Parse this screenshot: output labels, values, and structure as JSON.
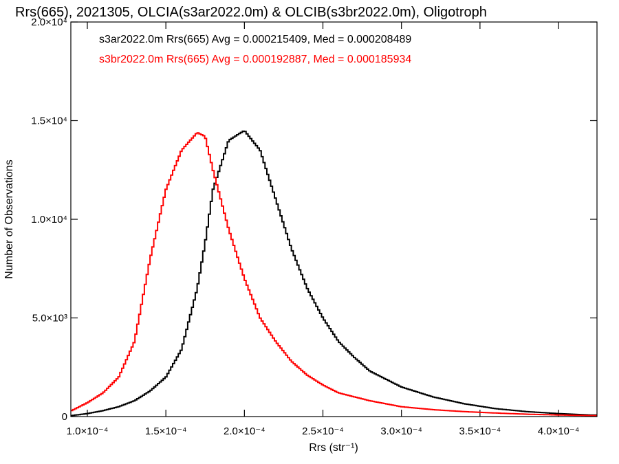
{
  "chart_data": {
    "type": "line",
    "step": true,
    "title": "Rrs(665), 2021305, OLCIA(s3ar2022.0m) & OLCIB(s3br2022.0m), Oligotroph",
    "xlabel": "Rrs (str⁻¹)",
    "ylabel": "Number of Observations",
    "xlim": [
      8.95e-05,
      0.0004245
    ],
    "ylim": [
      0,
      20000
    ],
    "xticks": [
      0.0001,
      0.00015,
      0.0002,
      0.00025,
      0.0003,
      0.00035,
      0.0004
    ],
    "xtick_labels": [
      "1.0×10⁻⁴",
      "1.5×10⁻⁴",
      "2.0×10⁻⁴",
      "2.5×10⁻⁴",
      "3.0×10⁻⁴",
      "3.5×10⁻⁴",
      "4.0×10⁻⁴"
    ],
    "yticks": [
      0,
      5000,
      10000,
      15000,
      20000
    ],
    "ytick_labels": [
      "0",
      "5.0×10³",
      "1.0×10⁴",
      "1.5×10⁴",
      "2.0×10⁴"
    ],
    "grid": false,
    "legend_position": "top-left",
    "x": [
      9e-05,
      0.0001,
      0.00011,
      0.00012,
      0.00013,
      0.00014,
      0.00015,
      0.00016,
      0.00017,
      0.000175,
      0.00018,
      0.00019,
      0.0002,
      0.00021,
      0.00022,
      0.00023,
      0.00024,
      0.00025,
      0.00026,
      0.00027,
      0.00028,
      0.00029,
      0.0003,
      0.00032,
      0.00034,
      0.00036,
      0.00038,
      0.0004,
      0.00042
    ],
    "series": [
      {
        "name": "s3ar2022.0m",
        "label": "s3ar2022.0m Rrs(665) Avg = 0.000215409, Med = 0.000208489",
        "color": "#000000",
        "values": [
          50,
          150,
          300,
          500,
          800,
          1300,
          2000,
          3400,
          6500,
          8800,
          11500,
          14000,
          14500,
          13500,
          11000,
          8500,
          6500,
          5000,
          3800,
          3000,
          2300,
          1900,
          1500,
          1000,
          650,
          400,
          250,
          150,
          80
        ]
      },
      {
        "name": "s3br2022.0m",
        "label": "s3br2022.0m Rrs(665) Avg = 0.000192887, Med = 0.000185934",
        "color": "#ff0000",
        "values": [
          300,
          700,
          1200,
          2000,
          3800,
          8000,
          11500,
          13500,
          14400,
          14200,
          12500,
          9500,
          7000,
          5000,
          3800,
          2800,
          2100,
          1600,
          1200,
          1000,
          800,
          650,
          500,
          350,
          250,
          180,
          120,
          80,
          50
        ]
      }
    ]
  }
}
